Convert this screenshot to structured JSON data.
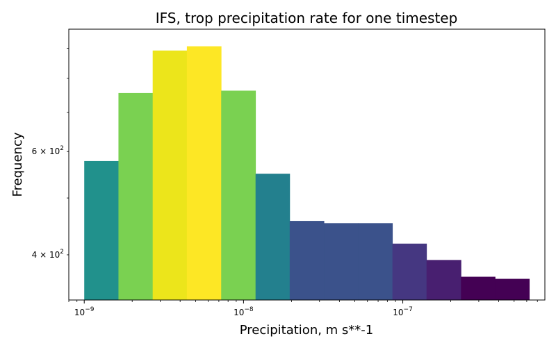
{
  "chart_data": {
    "type": "bar",
    "title": "IFS, trop precipitation rate for one timestep",
    "xlabel": "Precipitation, m s**-1",
    "ylabel": "Frequency",
    "x_scale": "log",
    "y_scale": "log",
    "xlim": [
      8e-10,
      7.8e-07
    ],
    "ylim": [
      335,
      970
    ],
    "x_ticks": [
      {
        "value": 1e-09,
        "base": "10",
        "exp": "−9"
      },
      {
        "value": 1e-08,
        "base": "10",
        "exp": "−8"
      },
      {
        "value": 1e-07,
        "base": "10",
        "exp": "−7"
      }
    ],
    "y_ticks": [
      {
        "value": 400,
        "mant": "4",
        "base": "10",
        "exp": "2"
      },
      {
        "value": 600,
        "mant": "6",
        "base": "10",
        "exp": "2"
      }
    ],
    "bins": [
      {
        "x0": 1e-09,
        "x1": 1.64e-09,
        "value": 578,
        "color": "#21918c"
      },
      {
        "x0": 1.64e-09,
        "x1": 2.69e-09,
        "value": 755,
        "color": "#7ad151"
      },
      {
        "x0": 2.69e-09,
        "x1": 4.41e-09,
        "value": 892,
        "color": "#ece51b"
      },
      {
        "x0": 4.41e-09,
        "x1": 7.24e-09,
        "value": 907,
        "color": "#fde725"
      },
      {
        "x0": 7.24e-09,
        "x1": 1.19e-08,
        "value": 762,
        "color": "#7ad151"
      },
      {
        "x0": 1.19e-08,
        "x1": 1.95e-08,
        "value": 550,
        "color": "#23808e"
      },
      {
        "x0": 1.95e-08,
        "x1": 3.2e-08,
        "value": 457,
        "color": "#3b528b"
      },
      {
        "x0": 3.2e-08,
        "x1": 5.25e-08,
        "value": 453,
        "color": "#3b528b"
      },
      {
        "x0": 5.25e-08,
        "x1": 8.61e-08,
        "value": 453,
        "color": "#3b528b"
      },
      {
        "x0": 8.61e-08,
        "x1": 1.41e-07,
        "value": 418,
        "color": "#453781"
      },
      {
        "x0": 1.41e-07,
        "x1": 2.32e-07,
        "value": 392,
        "color": "#481f70"
      },
      {
        "x0": 2.32e-07,
        "x1": 3.8e-07,
        "value": 367,
        "color": "#440154"
      },
      {
        "x0": 3.8e-07,
        "x1": 6.23e-07,
        "value": 364,
        "color": "#440154"
      }
    ]
  }
}
